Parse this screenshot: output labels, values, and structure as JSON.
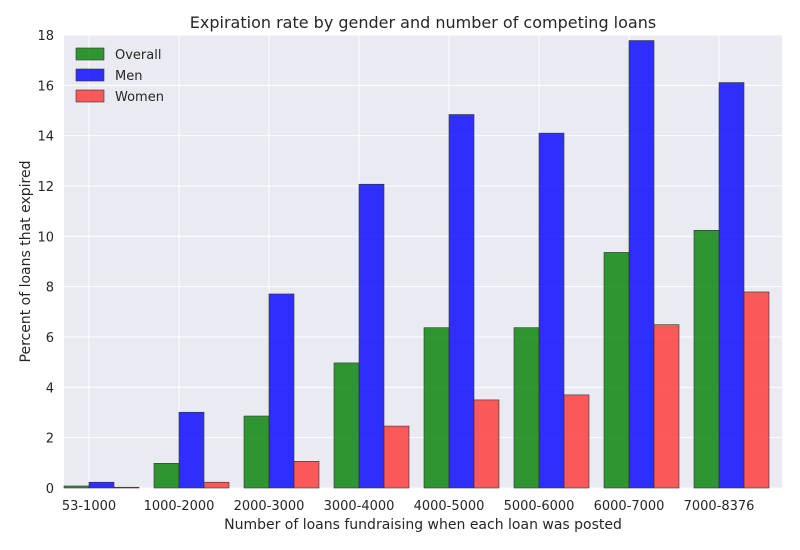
{
  "chart_data": {
    "type": "bar",
    "title": "Expiration rate by gender and number of competing loans",
    "xlabel": "Number of loans fundraising when each loan was posted",
    "ylabel": "Percent of loans that expired",
    "ylim": [
      0,
      18
    ],
    "yticks": [
      0,
      2,
      4,
      6,
      8,
      10,
      12,
      14,
      16,
      18
    ],
    "categories": [
      "53-1000",
      "1000-2000",
      "2000-3000",
      "3000-4000",
      "4000-5000",
      "5000-6000",
      "6000-7000",
      "7000-8376"
    ],
    "series": [
      {
        "name": "Overall",
        "color": "#008000",
        "values": [
          0.08,
          0.98,
          2.86,
          4.97,
          6.37,
          6.37,
          9.36,
          10.24
        ]
      },
      {
        "name": "Men",
        "color": "#0000ff",
        "values": [
          0.23,
          3.01,
          7.71,
          12.07,
          14.84,
          14.1,
          17.78,
          16.11
        ]
      },
      {
        "name": "Women",
        "color": "#ff3333",
        "values": [
          0.03,
          0.23,
          1.06,
          2.46,
          3.5,
          3.7,
          6.49,
          7.79
        ]
      }
    ],
    "grid": true,
    "legend_position": "top-left"
  }
}
